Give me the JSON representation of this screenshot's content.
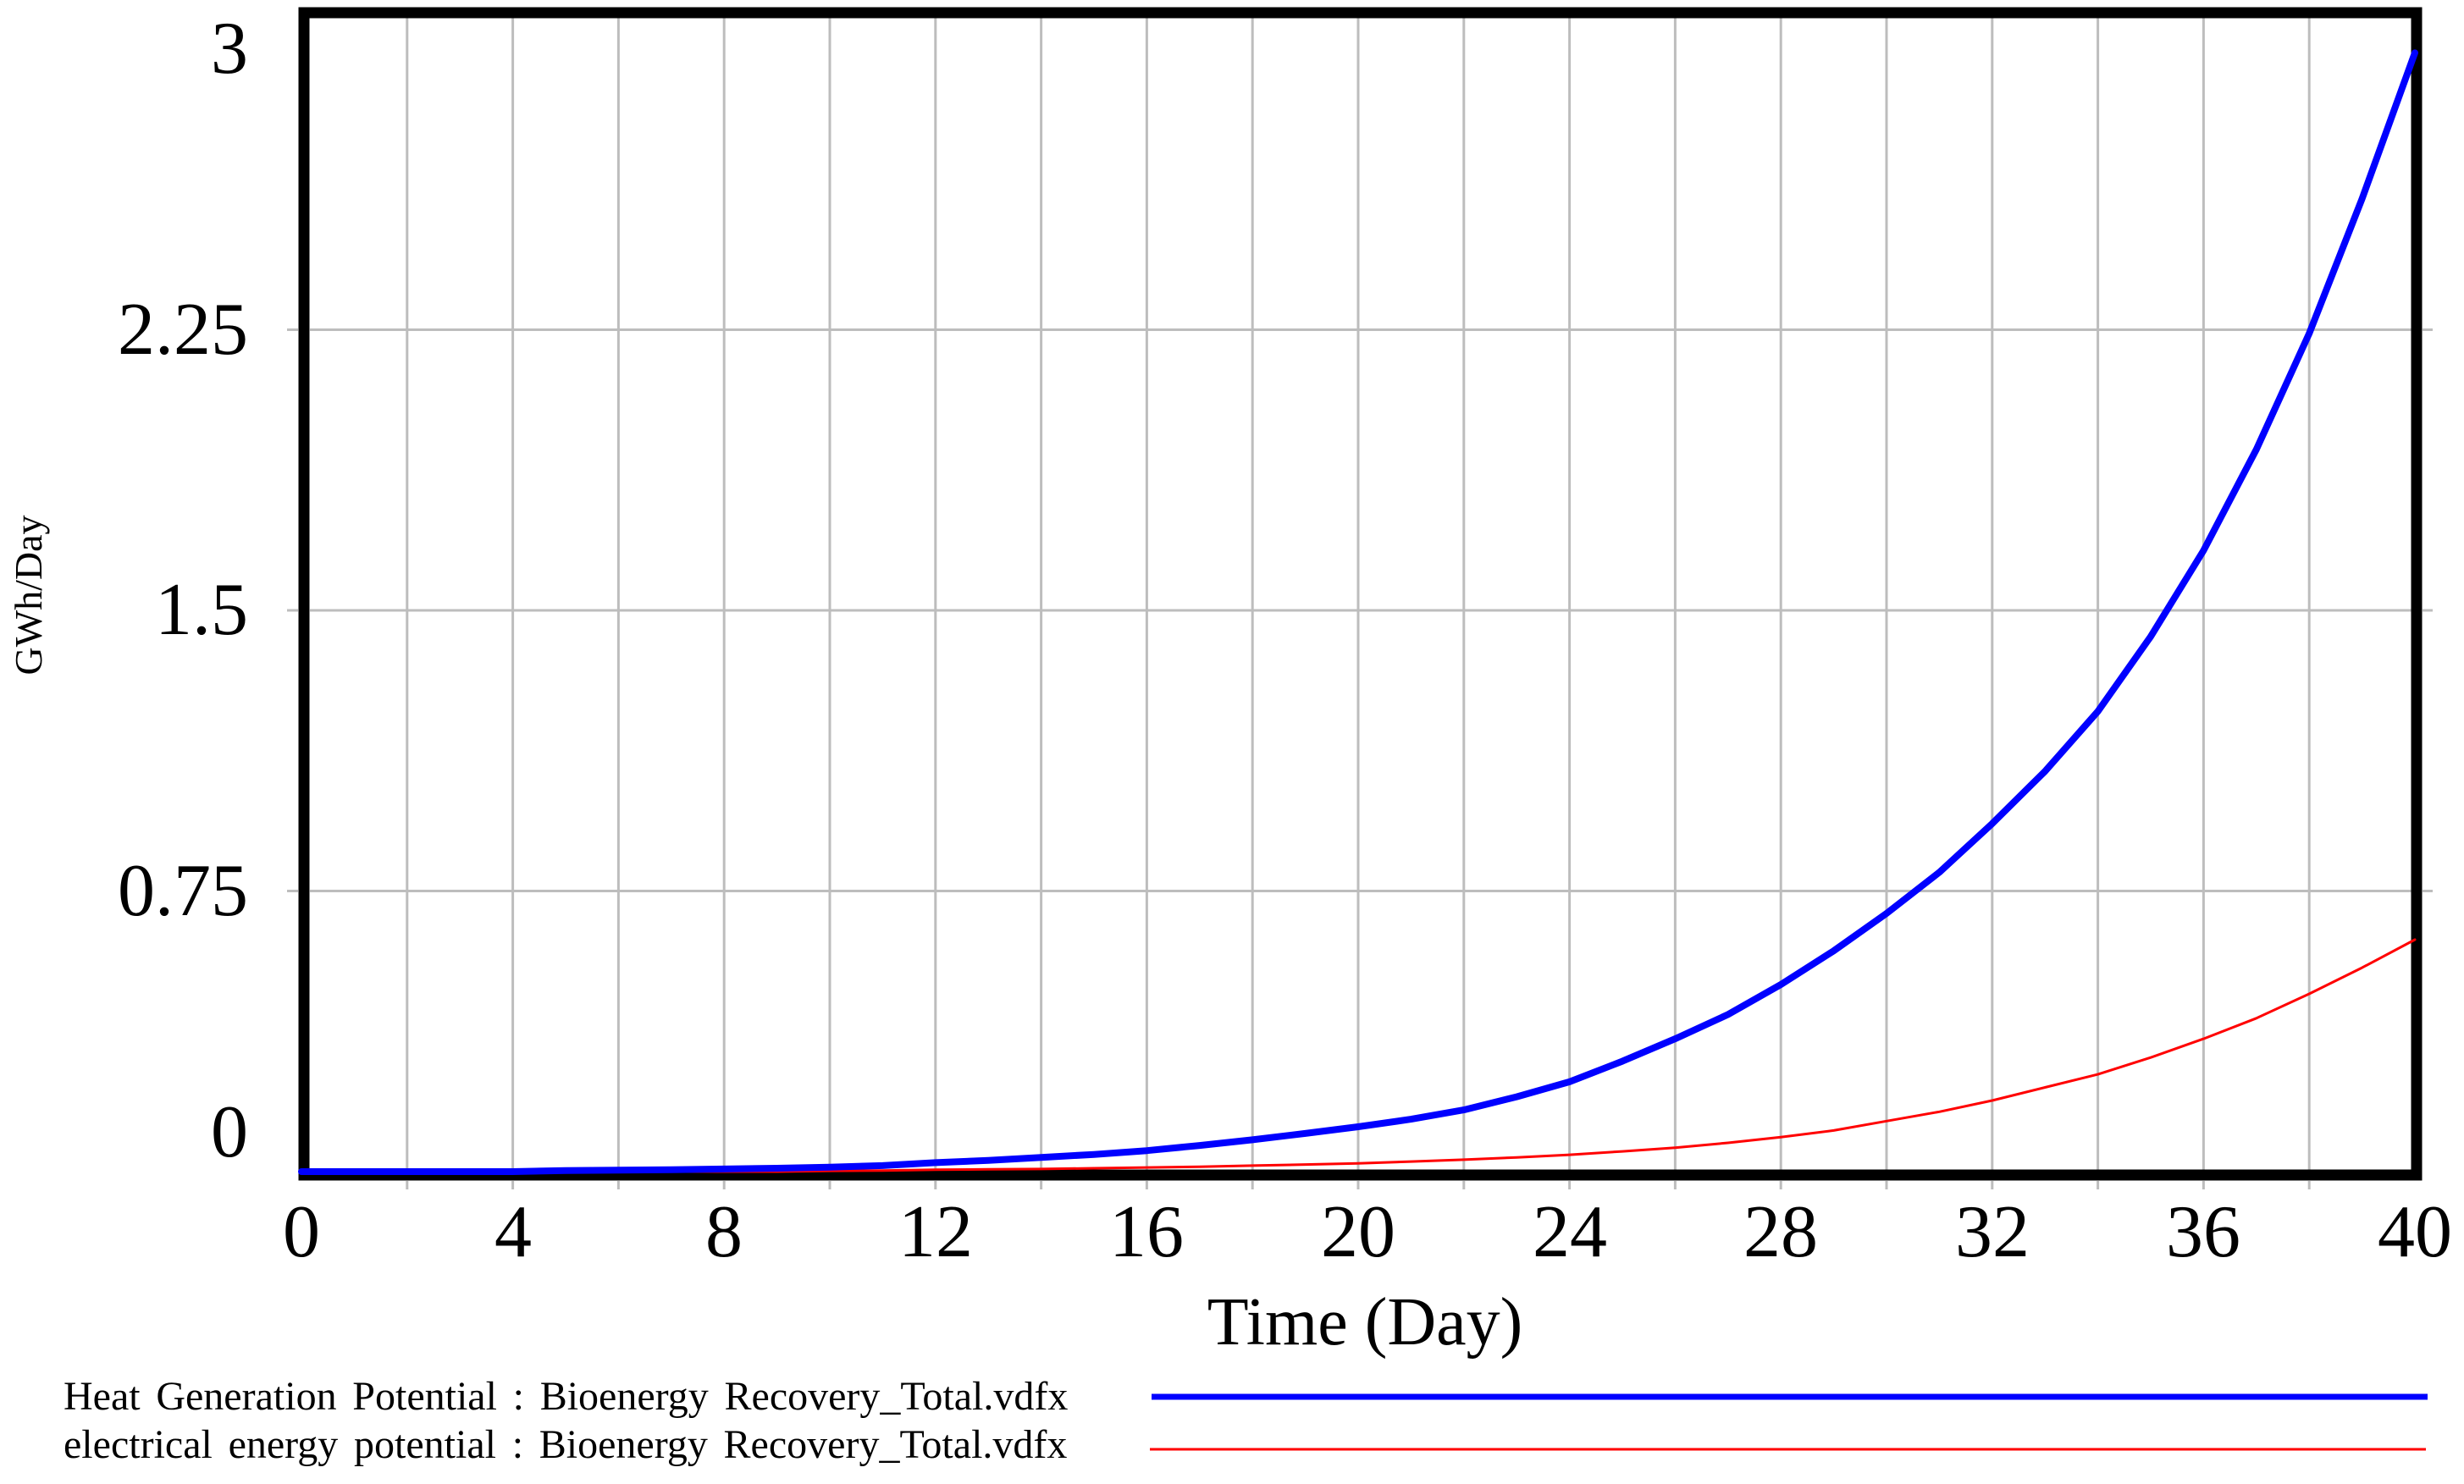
{
  "colors": {
    "background": "#ffffff",
    "frame": "#000000",
    "gridline": "#bdbdbd",
    "heat_line": "#0000ff",
    "electrical_line": "#ff0000",
    "text": "#000000"
  },
  "yAxis": {
    "title": "GWh/Day",
    "ticks": [
      "3",
      "2.25",
      "1.5",
      "0.75",
      "0"
    ],
    "values": [
      3,
      2.25,
      1.5,
      0.75,
      0
    ]
  },
  "xAxis": {
    "title": "Time (Day)",
    "ticks": [
      "0",
      "4",
      "8",
      "12",
      "16",
      "20",
      "24",
      "28",
      "32",
      "36",
      "40"
    ],
    "values": [
      0,
      4,
      8,
      12,
      16,
      20,
      24,
      28,
      32,
      36,
      40
    ]
  },
  "legend": {
    "items": [
      {
        "label": "Heat Generation Potential : Bioenergy Recovery_Total.vdfx",
        "color": "#0000ff"
      },
      {
        "label": "electrical energy potential : Bioenergy Recovery_Total.vdfx",
        "color": "#ff0000"
      }
    ]
  },
  "chart_data": {
    "type": "line",
    "title": "",
    "xlabel": "Time (Day)",
    "ylabel": "GWh/Day",
    "xlim": [
      0,
      40
    ],
    "ylim": [
      0,
      3
    ],
    "x_gridline_step": 2,
    "y_gridline_values": [
      0.75,
      1.5,
      2.25
    ],
    "grid": true,
    "legend_position": "bottom-left",
    "x": [
      0,
      1,
      2,
      3,
      4,
      5,
      6,
      7,
      8,
      9,
      10,
      11,
      12,
      13,
      14,
      15,
      16,
      17,
      18,
      19,
      20,
      21,
      22,
      23,
      24,
      25,
      26,
      27,
      28,
      29,
      30,
      31,
      32,
      33,
      34,
      35,
      36,
      37,
      38,
      39,
      40
    ],
    "series": [
      {
        "name": "Heat Generation Potential : Bioenergy Recovery_Total.vdfx",
        "color": "#0000ff",
        "values": [
          0,
          0,
          0,
          0,
          0,
          0.003,
          0.004,
          0.005,
          0.007,
          0.009,
          0.012,
          0.016,
          0.024,
          0.03,
          0.038,
          0.046,
          0.056,
          0.07,
          0.085,
          0.102,
          0.12,
          0.14,
          0.165,
          0.2,
          0.24,
          0.295,
          0.355,
          0.42,
          0.5,
          0.59,
          0.69,
          0.8,
          0.93,
          1.07,
          1.23,
          1.43,
          1.66,
          1.93,
          2.24,
          2.6,
          2.99
        ]
      },
      {
        "name": "electrical energy potential : Bioenergy Recovery_Total.vdfx",
        "color": "#ff0000",
        "values": [
          0,
          0,
          0,
          0,
          0,
          0,
          0,
          0,
          0,
          0,
          0.002,
          0.003,
          0.005,
          0.006,
          0.007,
          0.009,
          0.011,
          0.013,
          0.016,
          0.019,
          0.022,
          0.027,
          0.032,
          0.038,
          0.045,
          0.054,
          0.064,
          0.077,
          0.092,
          0.11,
          0.135,
          0.16,
          0.19,
          0.225,
          0.26,
          0.305,
          0.355,
          0.41,
          0.475,
          0.545,
          0.62
        ]
      }
    ]
  }
}
